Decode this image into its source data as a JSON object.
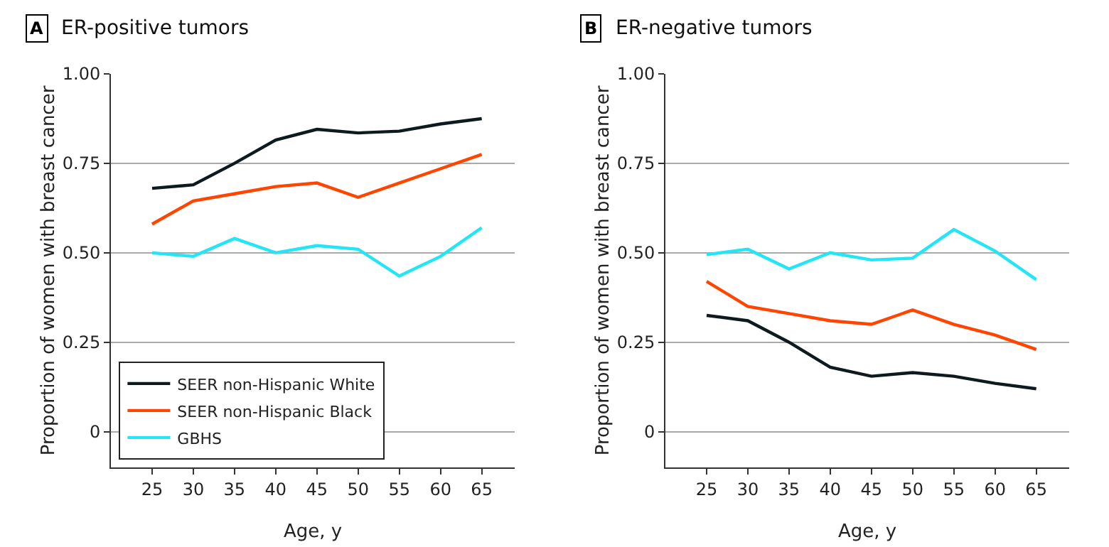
{
  "chart_data": [
    {
      "type": "line",
      "title": "ER-positive tumors",
      "annotations": [
        "A"
      ],
      "xlabel": "Age, y",
      "ylabel": "Proportion of women with breast cancer",
      "x": [
        25,
        30,
        35,
        40,
        45,
        50,
        55,
        60,
        65
      ],
      "xlim": [
        20,
        69
      ],
      "xticks": [
        25,
        30,
        35,
        40,
        45,
        50,
        55,
        60,
        65
      ],
      "ylim": [
        -0.1,
        1.0
      ],
      "yticks": [
        {
          "value": 0,
          "label": "0"
        },
        {
          "value": 0.25,
          "label": "0.25"
        },
        {
          "value": 0.5,
          "label": "0.50"
        },
        {
          "value": 0.75,
          "label": "0.75"
        },
        {
          "value": 1,
          "label": "1.00"
        }
      ],
      "grid": "y",
      "legend": "bottom left",
      "marker": "none",
      "line_style": "solid",
      "series": [
        {
          "name": "SEER non-Hispanic White",
          "color": "#0d1b1e",
          "values": [
            0.68,
            0.69,
            0.75,
            0.815,
            0.845,
            0.835,
            0.84,
            0.86,
            0.875
          ]
        },
        {
          "name": "SEER non-Hispanic Black",
          "color": "#ff4500",
          "values": [
            0.58,
            0.645,
            0.665,
            0.685,
            0.695,
            0.655,
            0.695,
            0.735,
            0.775
          ]
        },
        {
          "name": "GBHS",
          "color": "#22e5f5",
          "values": [
            0.5,
            0.49,
            0.54,
            0.5,
            0.52,
            0.51,
            0.435,
            0.49,
            0.57
          ]
        }
      ]
    },
    {
      "type": "line",
      "title": "ER-negative tumors",
      "annotations": [
        "B"
      ],
      "xlabel": "Age, y",
      "ylabel": "Proportion of women with breast cancer",
      "x": [
        25,
        30,
        35,
        40,
        45,
        50,
        55,
        60,
        65
      ],
      "xlim": [
        20,
        69
      ],
      "xticks": [
        25,
        30,
        35,
        40,
        45,
        50,
        55,
        60,
        65
      ],
      "ylim": [
        -0.1,
        1.0
      ],
      "yticks": [
        {
          "value": 0,
          "label": "0"
        },
        {
          "value": 0.25,
          "label": "0.25"
        },
        {
          "value": 0.5,
          "label": "0.50"
        },
        {
          "value": 0.75,
          "label": "0.75"
        },
        {
          "value": 1,
          "label": "1.00"
        }
      ],
      "grid": "y",
      "marker": "none",
      "line_style": "solid",
      "series": [
        {
          "color": "#0d1b1e",
          "values": [
            0.325,
            0.31,
            0.25,
            0.18,
            0.155,
            0.165,
            0.155,
            0.135,
            0.12
          ]
        },
        {
          "color": "#ff4500",
          "values": [
            0.42,
            0.35,
            0.33,
            0.31,
            0.3,
            0.34,
            0.3,
            0.27,
            0.23
          ]
        },
        {
          "color": "#22e5f5",
          "values": [
            0.495,
            0.51,
            0.455,
            0.5,
            0.48,
            0.485,
            0.565,
            0.505,
            0.425
          ]
        }
      ]
    }
  ]
}
